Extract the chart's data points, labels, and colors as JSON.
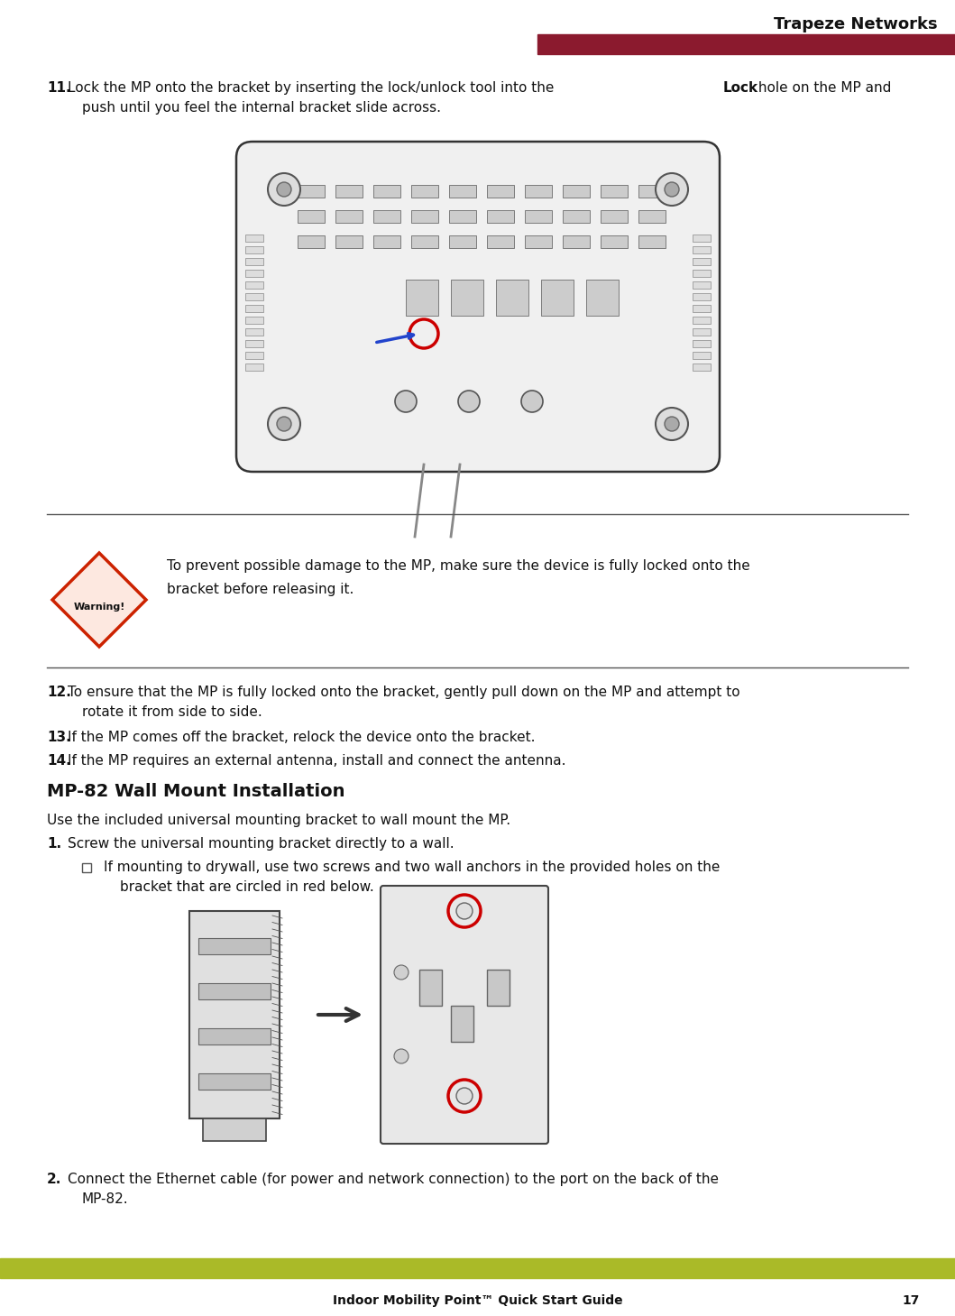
{
  "page_bg": "#ffffff",
  "header_bar_color": "#8B1A2E",
  "header_text": "Trapeze Networks",
  "footer_bar_color": "#AABA28",
  "footer_text": "Indoor Mobility Point™ Quick Start Guide",
  "footer_page": "17",
  "section_title": "MP-82 Wall Mount Installation",
  "warning_label": "Warning!",
  "warning_text_line1": "To prevent possible damage to the MP, make sure the device is fully locked onto the",
  "warning_text_line2": "bracket before releasing it.",
  "bullet_text_line1": "If mounting to drywall, use two screws and two wall anchors in the provided holes on the",
  "bullet_text_line2": "bracket that are circled in red below.",
  "step2_text_line1": "Connect the Ethernet cable (for power and network connection) to the port on the back of the",
  "step2_text_line2": "MP-82."
}
